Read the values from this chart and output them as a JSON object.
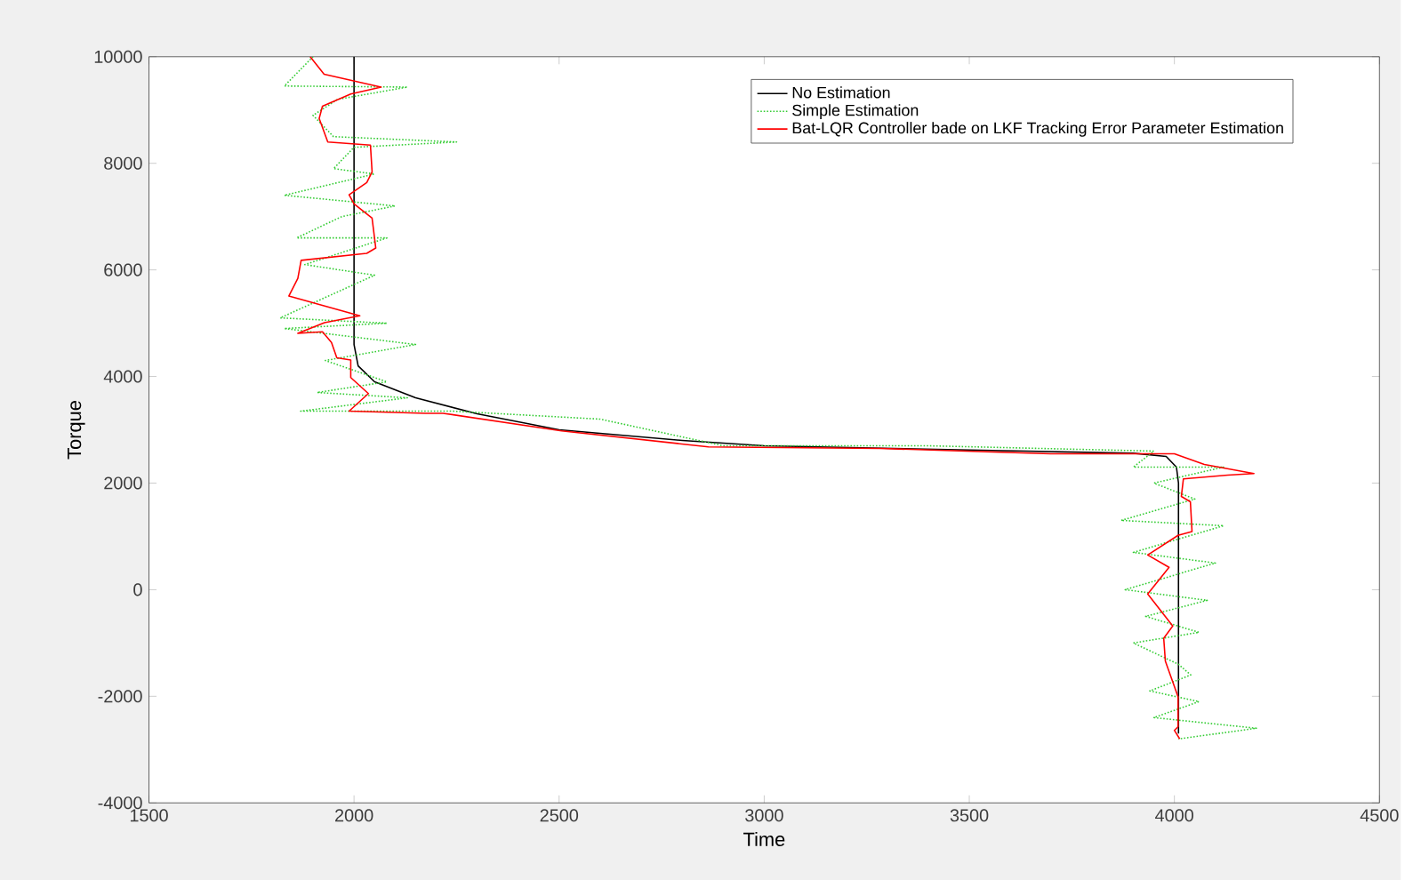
{
  "chart_data": {
    "type": "line",
    "xlabel": "Time",
    "ylabel": "Torque",
    "xlim": [
      1500,
      4500
    ],
    "ylim": [
      -4000,
      10000
    ],
    "xticks": [
      1500,
      2000,
      2500,
      3000,
      3500,
      4000,
      4500
    ],
    "yticks": [
      -4000,
      -2000,
      0,
      2000,
      4000,
      6000,
      8000,
      10000
    ],
    "legend": "top right",
    "grid": false,
    "marker": "none",
    "series": [
      {
        "name": "No Estimation",
        "color": "#000000",
        "line_style": "solid",
        "x": [
          2000,
          2000,
          2010,
          2050,
          2150,
          2300,
          2500,
          2800,
          3000,
          3500,
          3900,
          3980,
          4005,
          4010,
          4010
        ],
        "values": [
          10000,
          4600,
          4200,
          3900,
          3600,
          3300,
          3000,
          2800,
          2700,
          2620,
          2560,
          2500,
          2300,
          2000,
          -2700
        ]
      },
      {
        "name": "Simple Estimation",
        "color": "#33cc33",
        "line_style": "dotted",
        "x": [
          1900,
          1830,
          2130,
          1960,
          1900,
          1950,
          2250,
          2000,
          1950,
          2050,
          1830,
          2100,
          1970,
          1860,
          2080,
          1960,
          1880,
          2050,
          1820,
          2080,
          1830,
          2150,
          1930,
          2080,
          1910,
          2130,
          1870,
          2240,
          2600,
          2900,
          3400,
          3950,
          3900,
          4120,
          3950,
          4050,
          3870,
          4120,
          3900,
          4100,
          3880,
          4080,
          3930,
          4060,
          3900,
          4010,
          4040,
          3940,
          4060,
          3950,
          4200,
          4010
        ],
        "values": [
          10000,
          9450,
          9430,
          9200,
          8900,
          8500,
          8400,
          8300,
          7900,
          7800,
          7400,
          7200,
          7000,
          6600,
          6600,
          6300,
          6100,
          5900,
          5100,
          5000,
          4900,
          4600,
          4300,
          3900,
          3700,
          3600,
          3350,
          3350,
          3200,
          2700,
          2700,
          2600,
          2300,
          2300,
          2000,
          1700,
          1300,
          1200,
          700,
          500,
          0,
          -200,
          -500,
          -800,
          -1000,
          -1400,
          -1600,
          -1900,
          -2100,
          -2400,
          -2600,
          -2800
        ]
      },
      {
        "name": "Bat-LQR Controller bade on LKF Tracking Error Parameter Estimation",
        "color": "#ff0000",
        "line_style": "solid",
        "x": [
          1893,
          1927,
          2066,
          1992,
          1923,
          1915,
          1936,
          2040,
          2044,
          2031,
          1988,
          2000,
          2044,
          2053,
          2031,
          1871,
          1863,
          1841,
          2014,
          1928,
          1863,
          1923,
          1945,
          1958,
          1992,
          1992,
          2035,
          1988,
          2174,
          2217,
          2506,
          2864,
          3283,
          3698,
          4000,
          4073,
          4194,
          4130,
          4022,
          4017,
          4039,
          4043,
          4009,
          3935,
          3987,
          3935,
          3996,
          3974,
          3978,
          4009,
          4009,
          4000,
          4013
        ],
        "values": [
          10000,
          9670,
          9430,
          9300,
          9070,
          8840,
          8400,
          8340,
          7840,
          7640,
          7410,
          7240,
          6970,
          6410,
          6310,
          6180,
          5840,
          5510,
          5140,
          5010,
          4810,
          4840,
          4640,
          4350,
          4310,
          3980,
          3680,
          3350,
          3310,
          3310,
          2980,
          2680,
          2650,
          2550,
          2550,
          2350,
          2180,
          2150,
          2080,
          1750,
          1650,
          1090,
          1020,
          650,
          420,
          -80,
          -680,
          -910,
          -1340,
          -2010,
          -2570,
          -2640,
          -2800
        ]
      }
    ]
  }
}
